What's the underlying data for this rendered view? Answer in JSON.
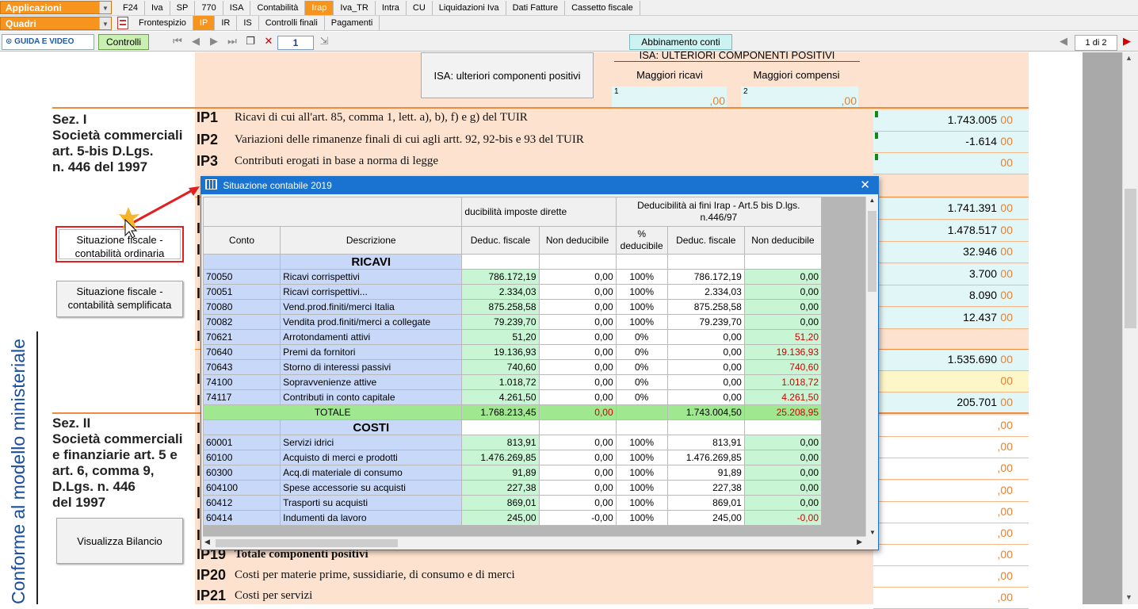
{
  "toolbar": {
    "applicazioni": "Applicazioni",
    "quadri": "Quadri",
    "menu": [
      "F24",
      "Iva",
      "SP",
      "770",
      "ISA",
      "Contabilità",
      "Irap",
      "Iva_TR",
      "Intra",
      "CU",
      "Liquidazioni Iva",
      "Dati Fatture",
      "Cassetto fiscale"
    ],
    "active_menu": "Irap",
    "quadri_tabs": [
      "Frontespizio",
      "IP",
      "IR",
      "IS",
      "Controlli finali",
      "Pagamenti"
    ],
    "active_quadro": "IP",
    "guida": "GUIDA E VIDEO",
    "controlli": "Controlli",
    "page_number": "1",
    "abbinamento": "Abbinamento conti",
    "page_counter": "1 di 2"
  },
  "isa": {
    "button": "ISA: ulteriori componenti positivi",
    "header": "ISA: ULTERIORI COMPONENTI POSITIVI",
    "col1": "Maggiori ricavi",
    "col2": "Maggiori compensi",
    "n1": "1",
    "n2": "2",
    "zeros": ",00"
  },
  "sez1": {
    "title": "Sez. I\nSocietà commerciali\nart. 5-bis D.Lgs.\nn. 446  del 1997",
    "btn_ordinaria": "Situazione fiscale - contabilità ordinaria",
    "btn_semplificata": "Situazione fiscale - contabilità semplificata"
  },
  "sez2": {
    "title": "Sez. II\nSocietà commerciali\ne finanziarie art. 5 e\nart. 6, comma 9,\nD.Lgs. n. 446\ndel 1997",
    "btn_bilancio": "Visualizza Bilancio"
  },
  "vertical_text": "Conforme al modello ministeriale",
  "rows": [
    {
      "code": "IP1",
      "desc": "Ricavi di cui all'art. 85, comma 1, lett. a), b), f) e g) del TUIR",
      "value": "1.743.005"
    },
    {
      "code": "IP2",
      "desc": "Variazioni delle rimanenze finali di cui agli artt. 92, 92-bis e 93 del TUIR",
      "value": "-1.614"
    },
    {
      "code": "IP3",
      "desc": "Contributi erogati in base a norma di legge",
      "value": ""
    }
  ],
  "right_values": [
    "1.741.391",
    "1.478.517",
    "32.946",
    "3.700",
    "8.090",
    "12.437",
    "1.535.690",
    "",
    "205.701"
  ],
  "zeros_suffix": "00",
  "bottom_rows": [
    {
      "code": "IP19",
      "desc": "Totale componenti positivi"
    },
    {
      "code": "IP20",
      "desc": "Costi per materie prime, sussidiarie, di consumo e di merci"
    },
    {
      "code": "IP21",
      "desc": "Costi per servizi"
    }
  ],
  "popup": {
    "title": "Situazione contabile 2019",
    "group1": "ducibilità imposte dirette",
    "group2": "Deducibilità ai fini Irap - Art.5 bis D.lgs. n.446/97",
    "columns": [
      "Conto",
      "Descrizione",
      "Deduc. fiscale",
      "Non deducibile",
      "% deducibile",
      "Deduc. fiscale",
      "Non deducibile"
    ],
    "ricavi_label": "RICAVI",
    "ricavi": [
      [
        "70050",
        "Ricavi corrispettivi",
        "786.172,19",
        "0,00",
        "100%",
        "786.172,19",
        "0,00"
      ],
      [
        "70051",
        "Ricavi corrispettivi...",
        "2.334,03",
        "0,00",
        "100%",
        "2.334,03",
        "0,00"
      ],
      [
        "70080",
        "Vend.prod.finiti/merci Italia",
        "875.258,58",
        "0,00",
        "100%",
        "875.258,58",
        "0,00"
      ],
      [
        "70082",
        "Vendita prod.finiti/merci a collegate",
        "79.239,70",
        "0,00",
        "100%",
        "79.239,70",
        "0,00"
      ],
      [
        "70621",
        "Arrotondamenti attivi",
        "51,20",
        "0,00",
        "0%",
        "0,00",
        "51,20"
      ],
      [
        "70640",
        "Premi da fornitori",
        "19.136,93",
        "0,00",
        "0%",
        "0,00",
        "19.136,93"
      ],
      [
        "70643",
        "Storno di interessi passivi",
        "740,60",
        "0,00",
        "0%",
        "0,00",
        "740,60"
      ],
      [
        "74100",
        "Sopravvenienze attive",
        "1.018,72",
        "0,00",
        "0%",
        "0,00",
        "1.018,72"
      ],
      [
        "74117",
        "Contributi in conto capitale",
        "4.261,50",
        "0,00",
        "0%",
        "0,00",
        "4.261,50"
      ]
    ],
    "totale": [
      "TOTALE",
      "1.768.213,45",
      "0,00",
      "1.743.004,50",
      "25.208,95"
    ],
    "costi_label": "COSTI",
    "costi": [
      [
        "60001",
        "Servizi idrici",
        "813,91",
        "0,00",
        "100%",
        "813,91",
        "0,00"
      ],
      [
        "60100",
        "Acquisto di merci e prodotti",
        "1.476.269,85",
        "0,00",
        "100%",
        "1.476.269,85",
        "0,00"
      ],
      [
        "60300",
        "Acq.di materiale di consumo",
        "91,89",
        "0,00",
        "100%",
        "91,89",
        "0,00"
      ],
      [
        "604100",
        "Spese accessorie su acquisti",
        "227,38",
        "0,00",
        "100%",
        "227,38",
        "0,00"
      ],
      [
        "60412",
        "Trasporti su acquisti",
        "869,01",
        "0,00",
        "100%",
        "869,01",
        "0,00"
      ],
      [
        "60414",
        "Indumenti da lavoro",
        "245,00",
        "-0,00",
        "100%",
        "245,00",
        "-0,00"
      ]
    ]
  }
}
